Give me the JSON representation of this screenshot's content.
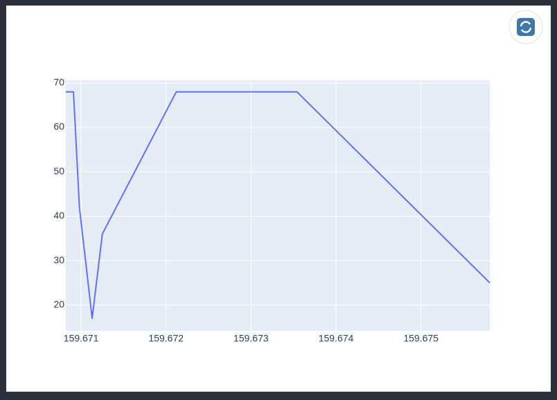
{
  "chart_data": {
    "type": "line",
    "x": [
      159.67082,
      159.67091,
      159.67098,
      159.67113,
      159.67125,
      159.67212,
      159.67354,
      159.67581
    ],
    "values": [
      68,
      68,
      42,
      17,
      36,
      68,
      68,
      25
    ],
    "color": "#636efa",
    "xlim": [
      159.67082,
      159.67581
    ],
    "xticks": [
      159.671,
      159.672,
      159.673,
      159.674,
      159.675
    ],
    "ylim": [
      14.2,
      70.6
    ],
    "yticks": [
      20,
      30,
      40,
      50,
      60,
      70
    ],
    "grid": true
  }
}
